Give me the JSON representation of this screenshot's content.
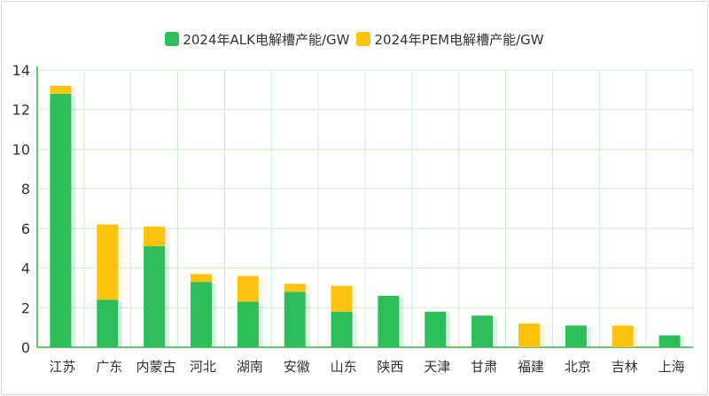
{
  "chart_data": {
    "type": "bar",
    "stacked": true,
    "categories": [
      "江苏",
      "广东",
      "内蒙古",
      "河北",
      "湖南",
      "安徽",
      "山东",
      "陕西",
      "天津",
      "甘肃",
      "福建",
      "北京",
      "吉林",
      "上海"
    ],
    "series": [
      {
        "name": "2024年ALK电解槽产能/GW",
        "color": "#2dbd5a",
        "values": [
          12.8,
          2.4,
          5.1,
          3.3,
          2.3,
          2.8,
          1.8,
          2.6,
          1.8,
          1.6,
          0,
          1.1,
          0,
          0.6
        ]
      },
      {
        "name": "2024年PEM电解槽产能/GW",
        "color": "#fec30e",
        "values": [
          0.4,
          3.8,
          1.0,
          0.4,
          1.3,
          0.4,
          1.3,
          0,
          0,
          0,
          1.2,
          0,
          1.1,
          0
        ]
      }
    ],
    "ylim": [
      0,
      14
    ],
    "yticks": [
      0,
      2,
      4,
      6,
      8,
      10,
      12,
      14
    ],
    "grid": true,
    "legend_position": "top"
  }
}
